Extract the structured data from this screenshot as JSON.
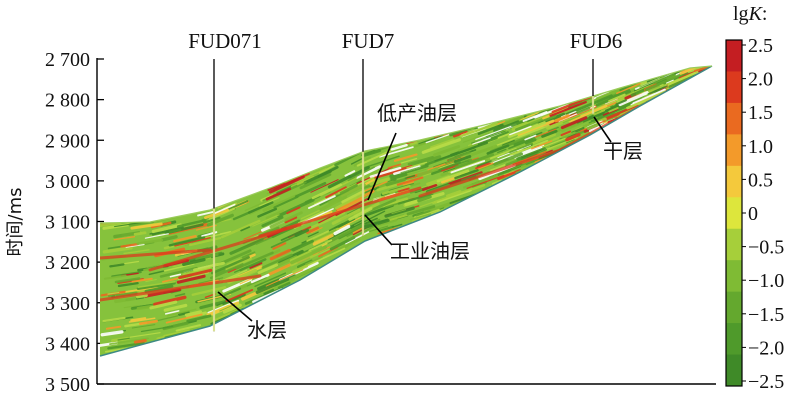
{
  "chart_data": {
    "type": "heatmap",
    "ylabel": "时间/ms",
    "y_ticks": [
      "2 700",
      "2 800",
      "2 900",
      "3 000",
      "3 100",
      "3 200",
      "3 300",
      "3 400",
      "3 500"
    ],
    "ylim": [
      2700,
      3500
    ],
    "y_inverted": true,
    "wells": [
      {
        "name": "FUD071",
        "top": 2700,
        "bottom": 3370
      },
      {
        "name": "FUD7",
        "top": 2700,
        "bottom": 3135
      },
      {
        "name": "FUD6",
        "top": 2700,
        "bottom": 2835
      }
    ],
    "annotations": [
      {
        "text": "低产油层",
        "well": "FUD7",
        "time": 3055
      },
      {
        "text": "工业油层",
        "well": "FUD7",
        "time": 3090
      },
      {
        "text": "干层",
        "well": "FUD6",
        "time": 2845
      },
      {
        "text": "水层",
        "well": "FUD071",
        "time": 3290
      }
    ],
    "colorbar": {
      "title": "lgK",
      "title_suffix": ":",
      "ticks": [
        "2.5",
        "2.0",
        "1.5",
        "1.0",
        "0.5",
        "0",
        "−0.5",
        "−1.0",
        "−1.5",
        "−2.0",
        "−2.5"
      ],
      "range": [
        -2.5,
        2.5
      ],
      "colors": [
        "#c41e22",
        "#dc3a1e",
        "#ea6a20",
        "#f39a2a",
        "#f4c93c",
        "#dde63c",
        "#a6cf3a",
        "#7fbb34",
        "#64a82e",
        "#4f9a2b",
        "#3f8a28"
      ]
    },
    "grid": false,
    "legend": "right colorbar"
  }
}
